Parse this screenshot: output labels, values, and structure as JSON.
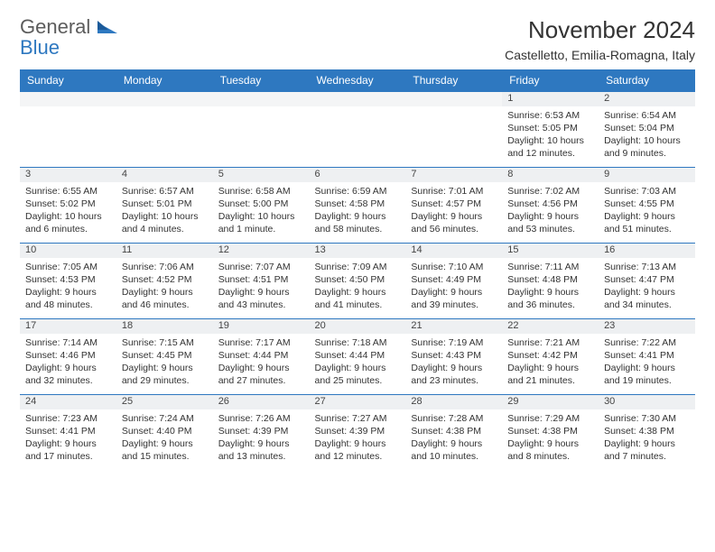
{
  "logo": {
    "part1": "General",
    "part2": "Blue"
  },
  "title": "November 2024",
  "location": "Castelletto, Emilia-Romagna, Italy",
  "colors": {
    "header_bg": "#2e78c0",
    "header_text": "#ffffff",
    "daynum_bg": "#eef0f2",
    "row_divider": "#2e78c0",
    "body_text": "#333333",
    "logo_gray": "#5c5c5c",
    "logo_blue": "#2e78c0",
    "page_bg": "#ffffff"
  },
  "day_headers": [
    "Sunday",
    "Monday",
    "Tuesday",
    "Wednesday",
    "Thursday",
    "Friday",
    "Saturday"
  ],
  "weeks": [
    [
      null,
      null,
      null,
      null,
      null,
      {
        "n": "1",
        "sr": "Sunrise: 6:53 AM",
        "ss": "Sunset: 5:05 PM",
        "dl": "Daylight: 10 hours and 12 minutes."
      },
      {
        "n": "2",
        "sr": "Sunrise: 6:54 AM",
        "ss": "Sunset: 5:04 PM",
        "dl": "Daylight: 10 hours and 9 minutes."
      }
    ],
    [
      {
        "n": "3",
        "sr": "Sunrise: 6:55 AM",
        "ss": "Sunset: 5:02 PM",
        "dl": "Daylight: 10 hours and 6 minutes."
      },
      {
        "n": "4",
        "sr": "Sunrise: 6:57 AM",
        "ss": "Sunset: 5:01 PM",
        "dl": "Daylight: 10 hours and 4 minutes."
      },
      {
        "n": "5",
        "sr": "Sunrise: 6:58 AM",
        "ss": "Sunset: 5:00 PM",
        "dl": "Daylight: 10 hours and 1 minute."
      },
      {
        "n": "6",
        "sr": "Sunrise: 6:59 AM",
        "ss": "Sunset: 4:58 PM",
        "dl": "Daylight: 9 hours and 58 minutes."
      },
      {
        "n": "7",
        "sr": "Sunrise: 7:01 AM",
        "ss": "Sunset: 4:57 PM",
        "dl": "Daylight: 9 hours and 56 minutes."
      },
      {
        "n": "8",
        "sr": "Sunrise: 7:02 AM",
        "ss": "Sunset: 4:56 PM",
        "dl": "Daylight: 9 hours and 53 minutes."
      },
      {
        "n": "9",
        "sr": "Sunrise: 7:03 AM",
        "ss": "Sunset: 4:55 PM",
        "dl": "Daylight: 9 hours and 51 minutes."
      }
    ],
    [
      {
        "n": "10",
        "sr": "Sunrise: 7:05 AM",
        "ss": "Sunset: 4:53 PM",
        "dl": "Daylight: 9 hours and 48 minutes."
      },
      {
        "n": "11",
        "sr": "Sunrise: 7:06 AM",
        "ss": "Sunset: 4:52 PM",
        "dl": "Daylight: 9 hours and 46 minutes."
      },
      {
        "n": "12",
        "sr": "Sunrise: 7:07 AM",
        "ss": "Sunset: 4:51 PM",
        "dl": "Daylight: 9 hours and 43 minutes."
      },
      {
        "n": "13",
        "sr": "Sunrise: 7:09 AM",
        "ss": "Sunset: 4:50 PM",
        "dl": "Daylight: 9 hours and 41 minutes."
      },
      {
        "n": "14",
        "sr": "Sunrise: 7:10 AM",
        "ss": "Sunset: 4:49 PM",
        "dl": "Daylight: 9 hours and 39 minutes."
      },
      {
        "n": "15",
        "sr": "Sunrise: 7:11 AM",
        "ss": "Sunset: 4:48 PM",
        "dl": "Daylight: 9 hours and 36 minutes."
      },
      {
        "n": "16",
        "sr": "Sunrise: 7:13 AM",
        "ss": "Sunset: 4:47 PM",
        "dl": "Daylight: 9 hours and 34 minutes."
      }
    ],
    [
      {
        "n": "17",
        "sr": "Sunrise: 7:14 AM",
        "ss": "Sunset: 4:46 PM",
        "dl": "Daylight: 9 hours and 32 minutes."
      },
      {
        "n": "18",
        "sr": "Sunrise: 7:15 AM",
        "ss": "Sunset: 4:45 PM",
        "dl": "Daylight: 9 hours and 29 minutes."
      },
      {
        "n": "19",
        "sr": "Sunrise: 7:17 AM",
        "ss": "Sunset: 4:44 PM",
        "dl": "Daylight: 9 hours and 27 minutes."
      },
      {
        "n": "20",
        "sr": "Sunrise: 7:18 AM",
        "ss": "Sunset: 4:44 PM",
        "dl": "Daylight: 9 hours and 25 minutes."
      },
      {
        "n": "21",
        "sr": "Sunrise: 7:19 AM",
        "ss": "Sunset: 4:43 PM",
        "dl": "Daylight: 9 hours and 23 minutes."
      },
      {
        "n": "22",
        "sr": "Sunrise: 7:21 AM",
        "ss": "Sunset: 4:42 PM",
        "dl": "Daylight: 9 hours and 21 minutes."
      },
      {
        "n": "23",
        "sr": "Sunrise: 7:22 AM",
        "ss": "Sunset: 4:41 PM",
        "dl": "Daylight: 9 hours and 19 minutes."
      }
    ],
    [
      {
        "n": "24",
        "sr": "Sunrise: 7:23 AM",
        "ss": "Sunset: 4:41 PM",
        "dl": "Daylight: 9 hours and 17 minutes."
      },
      {
        "n": "25",
        "sr": "Sunrise: 7:24 AM",
        "ss": "Sunset: 4:40 PM",
        "dl": "Daylight: 9 hours and 15 minutes."
      },
      {
        "n": "26",
        "sr": "Sunrise: 7:26 AM",
        "ss": "Sunset: 4:39 PM",
        "dl": "Daylight: 9 hours and 13 minutes."
      },
      {
        "n": "27",
        "sr": "Sunrise: 7:27 AM",
        "ss": "Sunset: 4:39 PM",
        "dl": "Daylight: 9 hours and 12 minutes."
      },
      {
        "n": "28",
        "sr": "Sunrise: 7:28 AM",
        "ss": "Sunset: 4:38 PM",
        "dl": "Daylight: 9 hours and 10 minutes."
      },
      {
        "n": "29",
        "sr": "Sunrise: 7:29 AM",
        "ss": "Sunset: 4:38 PM",
        "dl": "Daylight: 9 hours and 8 minutes."
      },
      {
        "n": "30",
        "sr": "Sunrise: 7:30 AM",
        "ss": "Sunset: 4:38 PM",
        "dl": "Daylight: 9 hours and 7 minutes."
      }
    ]
  ]
}
